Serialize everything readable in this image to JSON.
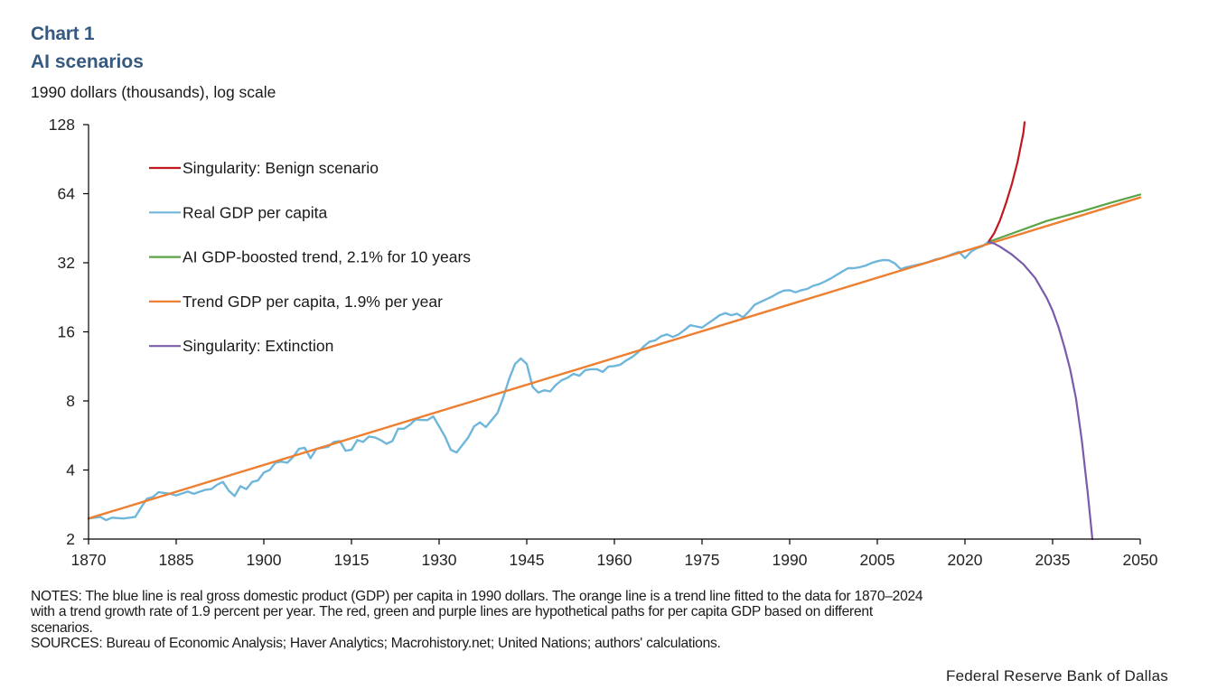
{
  "header": {
    "chart_number": "Chart 1",
    "title": "AI scenarios",
    "subtitle": "1990 dollars (thousands),  log scale"
  },
  "colors": {
    "title": "#36597f",
    "real_gdp": "#6fb6db",
    "trend": "#ec7f32",
    "boosted": "#5aa447",
    "benign": "#c0181e",
    "extinction": "#7a5bab",
    "axis": "#000000"
  },
  "chart_data": {
    "type": "line",
    "title": "AI scenarios",
    "ylabel": "1990 dollars (thousands), log scale",
    "xlabel": "",
    "yscale": "log2",
    "xlim": [
      1870,
      2050
    ],
    "ylim": [
      2,
      128
    ],
    "x_ticks": [
      1870,
      1885,
      1900,
      1915,
      1930,
      1945,
      1960,
      1975,
      1990,
      2005,
      2020,
      2035,
      2050
    ],
    "y_ticks": [
      2,
      4,
      8,
      16,
      32,
      64,
      128
    ],
    "grid": false,
    "legend_position": "top-left",
    "legend": [
      {
        "key": "benign",
        "label": "Singularity: Benign scenario"
      },
      {
        "key": "real_gdp",
        "label": "Real GDP per capita"
      },
      {
        "key": "boosted",
        "label": "AI GDP-boosted trend, 2.1% for 10 years"
      },
      {
        "key": "trend",
        "label": "Trend GDP per capita, 1.9% per year"
      },
      {
        "key": "extinction",
        "label": "Singularity: Extinction"
      }
    ],
    "series": [
      {
        "key": "real_gdp",
        "name": "Real GDP per capita",
        "x": [
          1870,
          1872,
          1873,
          1874,
          1876,
          1878,
          1879,
          1880,
          1881,
          1882,
          1884,
          1885,
          1887,
          1888,
          1890,
          1891,
          1892,
          1893,
          1894,
          1895,
          1896,
          1897,
          1898,
          1899,
          1900,
          1901,
          1902,
          1903,
          1904,
          1905,
          1906,
          1907,
          1908,
          1909,
          1910,
          1911,
          1912,
          1913,
          1914,
          1915,
          1916,
          1917,
          1918,
          1919,
          1920,
          1921,
          1922,
          1923,
          1924,
          1925,
          1926,
          1927,
          1928,
          1929,
          1930,
          1931,
          1932,
          1933,
          1934,
          1935,
          1936,
          1937,
          1938,
          1939,
          1940,
          1941,
          1942,
          1943,
          1944,
          1945,
          1946,
          1947,
          1948,
          1949,
          1950,
          1951,
          1952,
          1953,
          1954,
          1955,
          1956,
          1957,
          1958,
          1959,
          1960,
          1961,
          1962,
          1963,
          1964,
          1965,
          1966,
          1967,
          1968,
          1969,
          1970,
          1971,
          1972,
          1973,
          1974,
          1975,
          1976,
          1977,
          1978,
          1979,
          1980,
          1981,
          1982,
          1983,
          1984,
          1985,
          1986,
          1987,
          1988,
          1989,
          1990,
          1991,
          1992,
          1993,
          1994,
          1995,
          1996,
          1997,
          1998,
          1999,
          2000,
          2001,
          2002,
          2003,
          2004,
          2005,
          2006,
          2007,
          2008,
          2009,
          2010,
          2011,
          2012,
          2013,
          2014,
          2015,
          2016,
          2017,
          2018,
          2019,
          2020,
          2021,
          2022,
          2023,
          2024
        ],
        "y": [
          2.46,
          2.5,
          2.42,
          2.48,
          2.46,
          2.5,
          2.75,
          3.0,
          3.05,
          3.2,
          3.15,
          3.1,
          3.22,
          3.15,
          3.28,
          3.3,
          3.45,
          3.55,
          3.25,
          3.08,
          3.4,
          3.3,
          3.55,
          3.6,
          3.9,
          4.0,
          4.3,
          4.35,
          4.3,
          4.55,
          4.95,
          5.0,
          4.5,
          4.95,
          5.0,
          5.05,
          5.3,
          5.35,
          4.85,
          4.9,
          5.4,
          5.3,
          5.6,
          5.55,
          5.4,
          5.2,
          5.35,
          6.05,
          6.05,
          6.3,
          6.65,
          6.6,
          6.6,
          6.85,
          6.2,
          5.6,
          4.9,
          4.77,
          5.15,
          5.55,
          6.2,
          6.45,
          6.15,
          6.6,
          7.1,
          8.3,
          10.0,
          11.6,
          12.25,
          11.6,
          9.2,
          8.7,
          8.9,
          8.8,
          9.4,
          9.85,
          10.1,
          10.5,
          10.3,
          10.9,
          11.0,
          11.0,
          10.7,
          11.3,
          11.35,
          11.5,
          12.0,
          12.4,
          13.0,
          13.8,
          14.5,
          14.7,
          15.3,
          15.6,
          15.2,
          15.6,
          16.3,
          17.1,
          16.9,
          16.7,
          17.4,
          18.1,
          18.9,
          19.3,
          18.9,
          19.2,
          18.5,
          19.6,
          21.0,
          21.6,
          22.2,
          22.8,
          23.6,
          24.2,
          24.3,
          23.8,
          24.3,
          24.6,
          25.4,
          25.8,
          26.5,
          27.3,
          28.3,
          29.3,
          30.3,
          30.3,
          30.6,
          31.1,
          31.9,
          32.5,
          32.9,
          32.8,
          31.8,
          30.0,
          30.6,
          31.0,
          31.4,
          31.8,
          32.4,
          33.1,
          33.5,
          34.2,
          35.0,
          35.7,
          33.5,
          35.7,
          37.0,
          37.8,
          39.4
        ]
      },
      {
        "key": "trend",
        "name": "Trend GDP per capita, 1.9% per year",
        "x": [
          1870,
          2050
        ],
        "y": [
          2.46,
          61.6
        ]
      },
      {
        "key": "boosted",
        "name": "AI GDP-boosted trend, 2.1% for 10 years",
        "x": [
          2024,
          2029,
          2034,
          2040,
          2045,
          2050
        ],
        "y": [
          39.4,
          43.8,
          48.7,
          53.6,
          58.5,
          63.5
        ]
      },
      {
        "key": "benign",
        "name": "Singularity: Benign scenario",
        "x": [
          2024,
          2025,
          2026,
          2027,
          2028,
          2029,
          2030,
          2030.2
        ],
        "y": [
          39.4,
          43,
          49,
          58,
          70,
          88,
          118,
          131
        ]
      },
      {
        "key": "extinction",
        "name": "Singularity: Extinction",
        "x": [
          2024,
          2025,
          2026,
          2028,
          2030,
          2032,
          2034,
          2035,
          2036,
          2037,
          2038,
          2039,
          2040,
          2041,
          2041.5,
          2041.8
        ],
        "y": [
          39.4,
          38.8,
          37.6,
          34.8,
          31.5,
          27.5,
          22.5,
          19.8,
          16.8,
          13.8,
          11.0,
          8.2,
          5.4,
          3.2,
          2.4,
          2.0
        ]
      }
    ]
  },
  "footer": {
    "notes": [
      "NOTES: The blue line is real gross domestic product (GDP) per capita in 1990 dollars. The orange line is a trend line fitted to the data for 1870–2024",
      "with a trend growth rate of 1.9 percent per year. The red, green and purple lines are hypothetical paths for per capita GDP based on different",
      "scenarios.",
      "SOURCES: Bureau of Economic Analysis; Haver Analytics; Macrohistory.net; United Nations; authors' calculations."
    ],
    "credit": "Federal Reserve Bank of Dallas"
  }
}
